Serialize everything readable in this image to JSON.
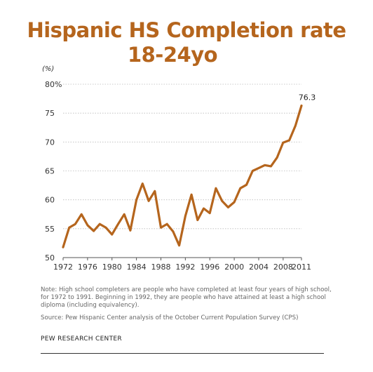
{
  "chart_data": {
    "type": "line",
    "title": "Hispanic HS Completion rate",
    "subtitle": "18-24yo",
    "unit_label": "(%)",
    "xlabel": "",
    "ylabel": "",
    "ylim": [
      50,
      80
    ],
    "yticks": [
      50,
      55,
      60,
      65,
      70,
      75,
      80
    ],
    "ytick_labels": [
      "50",
      "55",
      "60",
      "65",
      "70",
      "75",
      "80%"
    ],
    "xlim": [
      1972,
      2011
    ],
    "xticks": [
      1972,
      1976,
      1980,
      1984,
      1988,
      1992,
      1996,
      2000,
      2004,
      2008,
      2011
    ],
    "grid": "horizontal dotted",
    "series": [
      {
        "color": "#b5651d",
        "x": [
          1972,
          1973,
          1974,
          1975,
          1976,
          1977,
          1978,
          1979,
          1980,
          1981,
          1982,
          1983,
          1984,
          1985,
          1986,
          1987,
          1988,
          1989,
          1990,
          1991,
          1992,
          1993,
          1994,
          1995,
          1996,
          1997,
          1998,
          1999,
          2000,
          2001,
          2002,
          2003,
          2004,
          2005,
          2006,
          2007,
          2008,
          2009,
          2010,
          2011
        ],
        "values": [
          51.8,
          55.2,
          55.8,
          57.5,
          55.6,
          54.6,
          55.8,
          55.2,
          54.0,
          55.8,
          57.5,
          54.7,
          60.0,
          62.8,
          59.8,
          61.5,
          55.2,
          55.8,
          54.5,
          52.1,
          57.2,
          60.9,
          56.5,
          58.5,
          57.7,
          62.0,
          59.8,
          58.7,
          59.6,
          62.0,
          62.6,
          65.0,
          65.5,
          66.0,
          65.8,
          67.3,
          69.9,
          70.3,
          72.8,
          76.3
        ]
      }
    ],
    "annotations": [
      {
        "label": "76.3"
      }
    ]
  },
  "notes": {
    "note": "Note:  High school completers are people who have completed at least four years of high school, for 1972 to 1991. Beginning in 1992, they are people who have attained at least a high school diploma (including equivalency).",
    "source": "Source: Pew Hispanic Center analysis of the October Current Population Survey (CPS)",
    "credit": "PEW RESEARCH CENTER"
  }
}
